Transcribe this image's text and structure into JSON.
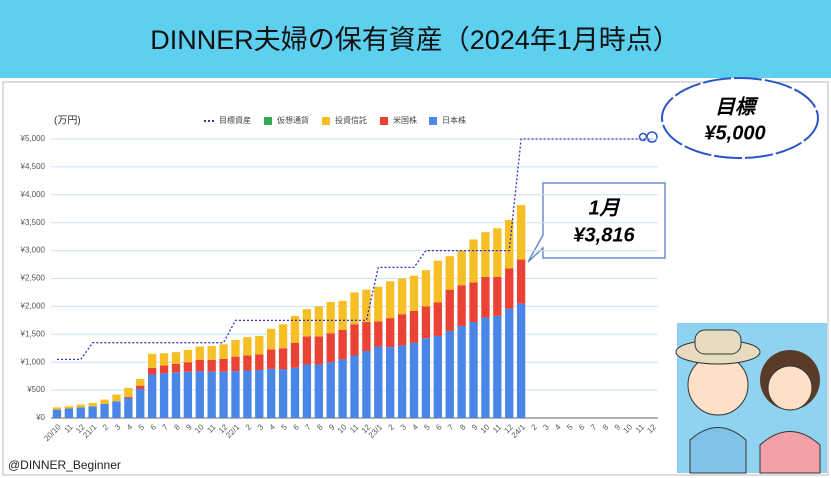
{
  "chart_data": {
    "type": "stacked-bar-line",
    "title": "DINNER夫婦の保有資産（2024年1月時点）",
    "y_label": "(万円)",
    "credit": "@DINNER_Beginner",
    "annotations": [
      "目標",
      "¥5,000",
      "1月",
      "¥3,816"
    ],
    "categories": [
      "20/10",
      "11",
      "12",
      "21/1",
      "2",
      "3",
      "4",
      "5",
      "6",
      "7",
      "8",
      "9",
      "10",
      "11",
      "12",
      "22/1",
      "2",
      "3",
      "4",
      "5",
      "6",
      "7",
      "8",
      "9",
      "10",
      "11",
      "12",
      "23/1",
      "2",
      "3",
      "4",
      "5",
      "6",
      "7",
      "8",
      "9",
      "10",
      "11",
      "12",
      "24/1",
      "2",
      "3",
      "4",
      "5",
      "6",
      "7",
      "8",
      "9",
      "10",
      "11",
      "12"
    ],
    "ylim": [
      0,
      5000
    ],
    "yticks": [
      {
        "value": 0,
        "label": "¥0"
      },
      {
        "value": 500,
        "label": "¥500"
      },
      {
        "value": 1000,
        "label": "¥1,000"
      },
      {
        "value": 1500,
        "label": "¥1,500"
      },
      {
        "value": 2000,
        "label": "¥2,000"
      },
      {
        "value": 2500,
        "label": "¥2,500"
      },
      {
        "value": 3000,
        "label": "¥3,000"
      },
      {
        "value": 3500,
        "label": "¥3,500"
      },
      {
        "value": 4000,
        "label": "¥4,000"
      },
      {
        "value": 4500,
        "label": "¥4,500"
      },
      {
        "value": 5000,
        "label": "¥5,000"
      }
    ],
    "grid": true,
    "legend": "top",
    "series": [
      {
        "name": "目標資産",
        "type": "line",
        "color": "#3333bb",
        "values": [
          1050,
          1050,
          1050,
          1350,
          1350,
          1350,
          1350,
          1350,
          1350,
          1350,
          1350,
          1350,
          1350,
          1350,
          1350,
          1750,
          1750,
          1750,
          1750,
          1750,
          1750,
          1750,
          1750,
          1750,
          1750,
          1750,
          1750,
          2700,
          2700,
          2700,
          2700,
          3000,
          3000,
          3000,
          3000,
          3000,
          3000,
          3000,
          3000,
          5000,
          5000,
          5000,
          5000,
          5000,
          5000,
          5000,
          5000,
          5000,
          5000,
          5000,
          5000
        ]
      },
      {
        "name": "仮想通貨",
        "type": "bar",
        "color": "#34a853",
        "values": [
          0,
          0,
          0,
          0,
          0,
          0,
          0,
          0,
          0,
          0,
          0,
          0,
          0,
          0,
          0,
          0,
          0,
          0,
          0,
          0,
          0,
          0,
          0,
          0,
          0,
          0,
          0,
          0,
          0,
          0,
          0,
          0,
          0,
          0,
          0,
          0,
          0,
          0,
          0,
          0,
          null,
          null,
          null,
          null,
          null,
          null,
          null,
          null,
          null,
          null,
          null
        ]
      },
      {
        "name": "投資信託",
        "type": "bar",
        "color": "#f6bf26",
        "values": [
          40,
          40,
          50,
          60,
          80,
          120,
          160,
          120,
          250,
          220,
          210,
          220,
          240,
          250,
          260,
          300,
          330,
          330,
          370,
          430,
          480,
          490,
          540,
          560,
          520,
          570,
          580,
          620,
          660,
          640,
          630,
          650,
          750,
          600,
          620,
          770,
          800,
          870,
          870,
          976,
          null,
          null,
          null,
          null,
          null,
          null,
          null,
          null,
          null,
          null,
          null
        ]
      },
      {
        "name": "米国株",
        "type": "bar",
        "color": "#ea4335",
        "values": [
          0,
          0,
          0,
          0,
          0,
          0,
          20,
          60,
          120,
          140,
          150,
          170,
          200,
          210,
          230,
          260,
          270,
          280,
          350,
          380,
          450,
          500,
          500,
          520,
          530,
          560,
          520,
          450,
          520,
          560,
          570,
          570,
          600,
          740,
          730,
          710,
          730,
          700,
          720,
          790,
          null,
          null,
          null,
          null,
          null,
          null,
          null,
          null,
          null,
          null,
          null
        ]
      },
      {
        "name": "日本株",
        "type": "bar",
        "color": "#4a86e8",
        "values": [
          150,
          170,
          190,
          210,
          250,
          300,
          360,
          520,
          780,
          800,
          820,
          830,
          840,
          830,
          830,
          840,
          850,
          860,
          880,
          870,
          900,
          960,
          960,
          1000,
          1050,
          1120,
          1200,
          1280,
          1270,
          1300,
          1350,
          1430,
          1470,
          1560,
          1650,
          1720,
          1800,
          1830,
          1960,
          2050,
          null,
          null,
          null,
          null,
          null,
          null,
          null,
          null,
          null,
          null,
          null
        ]
      }
    ]
  }
}
